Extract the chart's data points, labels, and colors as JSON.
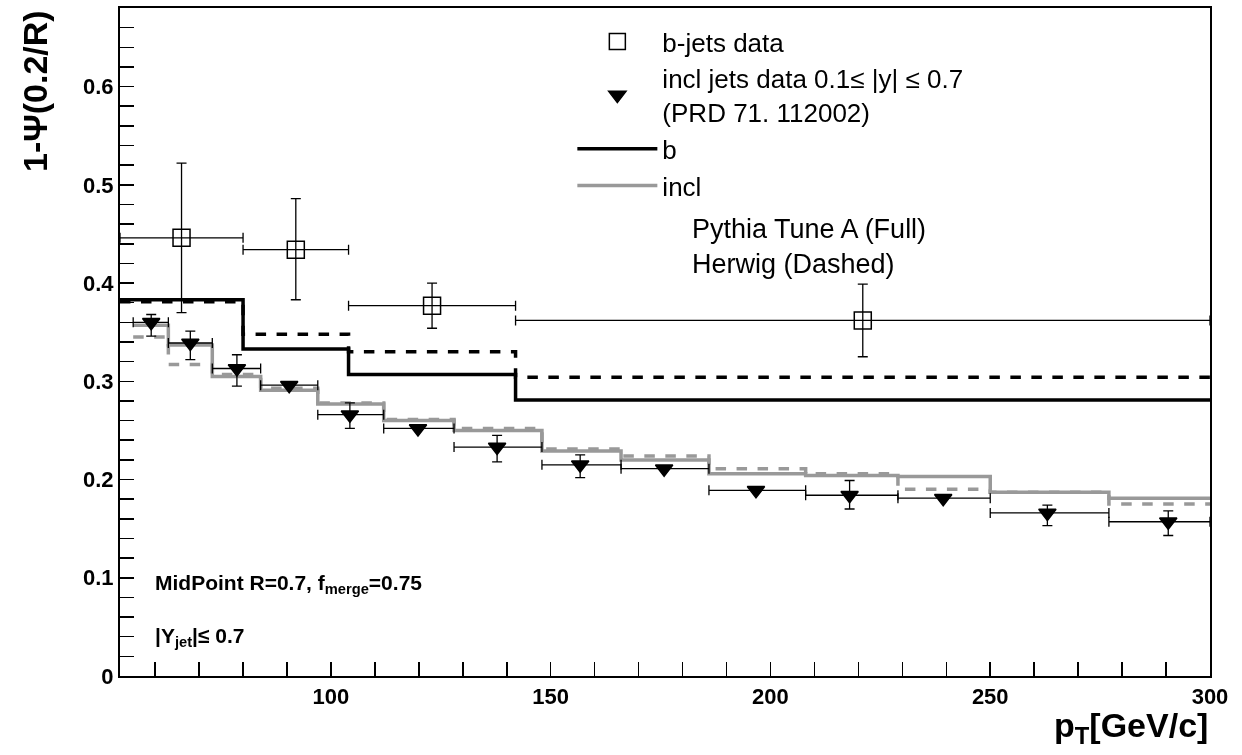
{
  "chart_data": {
    "type": "scatter",
    "xlabel": "p$_{T}$[GeV/c]",
    "ylabel": "1-Ψ(0.2/R)",
    "xlim": [
      52,
      300
    ],
    "ylim": [
      0,
      0.68
    ],
    "xticks": [
      {
        "value": 60,
        "label": null
      },
      {
        "value": 70,
        "label": null
      },
      {
        "value": 80,
        "label": null
      },
      {
        "value": 90,
        "label": null
      },
      100,
      {
        "value": 110,
        "label": null
      },
      {
        "value": 120,
        "label": null
      },
      {
        "value": 130,
        "label": null
      },
      {
        "value": 140,
        "label": null
      },
      150,
      {
        "value": 160,
        "label": null
      },
      {
        "value": 170,
        "label": null
      },
      {
        "value": 180,
        "label": null
      },
      {
        "value": 190,
        "label": null
      },
      200,
      {
        "value": 210,
        "label": null
      },
      {
        "value": 220,
        "label": null
      },
      {
        "value": 230,
        "label": null
      },
      {
        "value": 240,
        "label": null
      },
      250,
      {
        "value": 260,
        "label": null
      },
      {
        "value": 270,
        "label": null
      },
      {
        "value": 280,
        "label": null
      },
      {
        "value": 290,
        "label": null
      },
      300
    ],
    "yticks": [
      0,
      {
        "value": 0.02,
        "label": null
      },
      {
        "value": 0.04,
        "label": null
      },
      {
        "value": 0.06,
        "label": null
      },
      {
        "value": 0.08,
        "label": null
      },
      0.1,
      {
        "value": 0.12,
        "label": null
      },
      {
        "value": 0.14,
        "label": null
      },
      {
        "value": 0.16,
        "label": null
      },
      {
        "value": 0.18,
        "label": null
      },
      0.2,
      {
        "value": 0.22,
        "label": null
      },
      {
        "value": 0.24,
        "label": null
      },
      {
        "value": 0.26,
        "label": null
      },
      {
        "value": 0.28,
        "label": null
      },
      0.3,
      {
        "value": 0.32,
        "label": null
      },
      {
        "value": 0.34,
        "label": null
      },
      {
        "value": 0.36,
        "label": null
      },
      {
        "value": 0.38,
        "label": null
      },
      0.4,
      {
        "value": 0.42,
        "label": null
      },
      {
        "value": 0.44,
        "label": null
      },
      {
        "value": 0.46,
        "label": null
      },
      {
        "value": 0.48,
        "label": null
      },
      0.5,
      {
        "value": 0.52,
        "label": null
      },
      {
        "value": 0.54,
        "label": null
      },
      {
        "value": 0.56,
        "label": null
      },
      {
        "value": 0.58,
        "label": null
      },
      0.6,
      {
        "value": 0.62,
        "label": null
      },
      {
        "value": 0.64,
        "label": null
      },
      {
        "value": 0.66,
        "label": null
      }
    ],
    "grid": false,
    "legend": "top right",
    "series": [
      {
        "name": "b",
        "type": "step",
        "color": "#000000",
        "line_style": "solid",
        "x": [
          52,
          80,
          104,
          142,
          300
        ],
        "values": [
          0.383,
          0.333,
          0.307,
          0.281,
          0.281
        ]
      },
      {
        "type": "step",
        "color": "#000000",
        "line_style": "dashed",
        "x": [
          52,
          80,
          104,
          142,
          300
        ],
        "values": [
          0.381,
          0.348,
          0.33,
          0.304,
          0.304
        ]
      },
      {
        "name": "incl",
        "type": "step",
        "color": "#999999",
        "line_style": "solid",
        "x": [
          55,
          63,
          73,
          84,
          97,
          112,
          128,
          148,
          166,
          186,
          208,
          229,
          250,
          277,
          300
        ],
        "values": [
          0.357,
          0.337,
          0.305,
          0.291,
          0.277,
          0.26,
          0.25,
          0.229,
          0.22,
          0.206,
          0.204,
          0.203,
          0.187,
          0.181,
          0.181
        ]
      },
      {
        "type": "step",
        "color": "#999999",
        "line_style": "dashed",
        "x": [
          55,
          63,
          73,
          84,
          97,
          112,
          128,
          148,
          166,
          186,
          208,
          229,
          250,
          277,
          300
        ],
        "values": [
          0.345,
          0.317,
          0.307,
          0.293,
          0.278,
          0.261,
          0.252,
          0.231,
          0.224,
          0.211,
          0.206,
          0.19,
          0.187,
          0.175,
          0.175
        ]
      },
      {
        "name": "b-jets data",
        "color": "#000000",
        "marker": "square",
        "x": [
          66,
          92,
          123,
          221
        ],
        "values": [
          0.446,
          0.434,
          0.377,
          0.362
        ],
        "errors": [
          [
            0.37,
            0.522
          ],
          [
            0.383,
            0.486
          ],
          [
            0.354,
            0.4
          ],
          [
            0.325,
            0.399
          ]
        ],
        "xerrors": [
          [
            52,
            80
          ],
          [
            80,
            104
          ],
          [
            104,
            142
          ],
          [
            142,
            300
          ]
        ]
      },
      {
        "name": "incl jets data 0.1≤ |y| ≤ 0.7\n(PRD 71. 112002)",
        "color": "#000000",
        "marker": "triangle",
        "x": [
          59.1,
          68,
          78.6,
          90.5,
          104.3,
          119.8,
          137.8,
          156.7,
          175.8,
          196.7,
          218,
          239.3,
          263,
          290.5
        ],
        "values": [
          0.36,
          0.339,
          0.313,
          0.296,
          0.266,
          0.252,
          0.233,
          0.215,
          0.211,
          0.189,
          0.184,
          0.181,
          0.166,
          0.157
        ],
        "errors": [
          [
            0.346,
            0.368
          ],
          [
            0.322,
            0.351
          ],
          [
            0.295,
            0.327
          ],
          null,
          [
            0.252,
            0.278
          ],
          null,
          [
            0.218,
            0.245
          ],
          [
            0.202,
            0.225
          ],
          null,
          null,
          [
            0.17,
            0.199
          ],
          null,
          [
            0.153,
            0.174
          ],
          [
            0.143,
            0.168
          ]
        ],
        "xerrors": [
          [
            55,
            63
          ],
          [
            63,
            73
          ],
          [
            73,
            84
          ],
          [
            84,
            97
          ],
          [
            97,
            112
          ],
          [
            112,
            128
          ],
          [
            128,
            148
          ],
          [
            148,
            166
          ],
          [
            166,
            186
          ],
          [
            186,
            208
          ],
          [
            208,
            229
          ],
          [
            229,
            250
          ],
          [
            250,
            277
          ],
          [
            277,
            300
          ]
        ]
      }
    ],
    "annotations": [
      "Pythia Tune A (Full)",
      "Herwig (Dashed)",
      "MidPoint R=0.7, f$_{merge}$=0.75",
      "|Y$_{jet}$|≤ 0.7"
    ]
  }
}
